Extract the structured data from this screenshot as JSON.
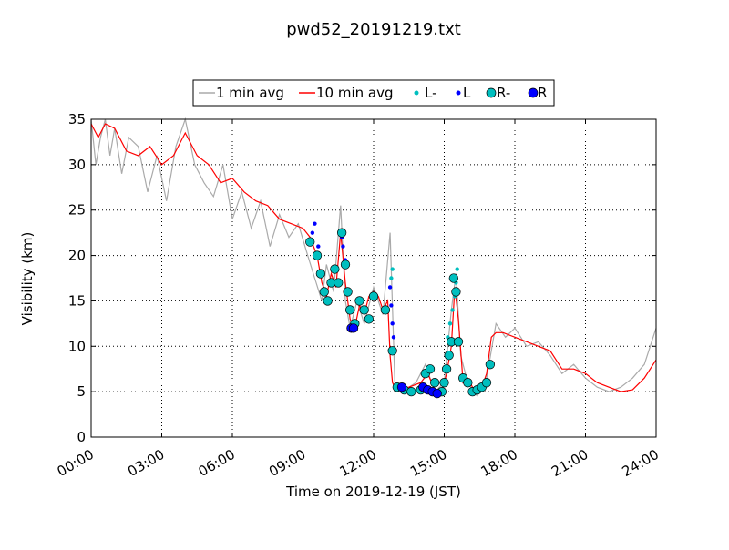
{
  "chart_data": {
    "type": "line",
    "title": "pwd52_20191219.txt",
    "xlabel": "Time on 2019-12-19 (JST)",
    "ylabel": "Visibility (km)",
    "xlim_hours": [
      0,
      24
    ],
    "ylim": [
      0,
      35
    ],
    "x_ticks": [
      "00:00",
      "03:00",
      "06:00",
      "09:00",
      "12:00",
      "15:00",
      "18:00",
      "21:00",
      "24:00"
    ],
    "y_ticks": [
      "0",
      "5",
      "10",
      "15",
      "20",
      "25",
      "30",
      "35"
    ],
    "grid": true,
    "legend_position": "top-center",
    "legend": [
      {
        "label": "1 min avg",
        "kind": "line",
        "color": "#aaaaaa"
      },
      {
        "label": "10 min avg",
        "kind": "line",
        "color": "#ff0000"
      },
      {
        "label": "L-",
        "kind": "small-dot",
        "color": "#00bfbf"
      },
      {
        "label": "L",
        "kind": "small-dot",
        "color": "#0000ff"
      },
      {
        "label": "R-",
        "kind": "big-dot",
        "color": "#00bfbf"
      },
      {
        "label": "R",
        "kind": "big-dot",
        "color": "#0000ff"
      }
    ],
    "series": [
      {
        "name": "10 min avg",
        "color": "#ff0000",
        "x": [
          0,
          0.3,
          0.6,
          1.0,
          1.5,
          2.0,
          2.5,
          3.0,
          3.5,
          4.0,
          4.5,
          5.0,
          5.5,
          6.0,
          6.5,
          7.0,
          7.5,
          8.0,
          8.5,
          9.0,
          9.3,
          9.6,
          9.8,
          10.0,
          10.2,
          10.4,
          10.6,
          10.8,
          11.0,
          11.2,
          11.4,
          11.6,
          11.8,
          12.0,
          12.2,
          12.4,
          12.6,
          12.7,
          12.8,
          12.9,
          13.0,
          13.5,
          14.0,
          14.3,
          14.6,
          14.9,
          15.1,
          15.3,
          15.45,
          15.6,
          15.8,
          16.0,
          16.3,
          16.6,
          16.8,
          17.0,
          17.2,
          17.5,
          18.0,
          18.5,
          19.0,
          19.5,
          20.0,
          20.5,
          21.0,
          21.5,
          22.0,
          22.5,
          23.0,
          23.5,
          24.0
        ],
        "values": [
          34.5,
          33.0,
          34.5,
          34.0,
          31.5,
          31.0,
          32.0,
          30.0,
          31.0,
          33.5,
          31.0,
          30.0,
          28.0,
          28.5,
          27.0,
          26.0,
          25.5,
          24.0,
          23.5,
          23.0,
          22.0,
          20.0,
          17.0,
          15.5,
          18.0,
          16.5,
          22.5,
          17.0,
          13.0,
          12.0,
          14.5,
          13.5,
          15.5,
          16.0,
          15.5,
          14.0,
          15.0,
          9.0,
          6.0,
          5.5,
          5.2,
          5.5,
          6.0,
          7.0,
          5.2,
          5.0,
          7.0,
          10.0,
          16.5,
          13.0,
          6.0,
          6.5,
          5.0,
          5.5,
          7.0,
          11.0,
          11.5,
          11.5,
          11.0,
          10.5,
          10.0,
          9.5,
          7.5,
          7.5,
          7.0,
          6.0,
          5.5,
          5.0,
          5.2,
          6.5,
          8.5
        ]
      },
      {
        "name": "1 min avg",
        "color": "#aaaaaa",
        "x": [
          0,
          0.2,
          0.4,
          0.6,
          0.8,
          1.0,
          1.3,
          1.6,
          2.0,
          2.4,
          2.8,
          3.2,
          3.6,
          4.0,
          4.4,
          4.8,
          5.2,
          5.6,
          6.0,
          6.4,
          6.8,
          7.2,
          7.6,
          8.0,
          8.4,
          8.8,
          9.2,
          9.5,
          9.8,
          10.0,
          10.3,
          10.6,
          10.8,
          11.0,
          11.3,
          11.6,
          12.0,
          12.4,
          12.7,
          12.9,
          13.2,
          13.8,
          14.2,
          14.6,
          15.0,
          15.3,
          15.5,
          15.7,
          16.0,
          16.4,
          16.8,
          17.2,
          17.6,
          18.0,
          18.5,
          19.0,
          19.5,
          20.0,
          20.5,
          21.0,
          21.5,
          22.0,
          22.5,
          23.0,
          23.5,
          24.0
        ],
        "values": [
          35.0,
          30.0,
          33.0,
          35.0,
          31.0,
          34.0,
          29.0,
          33.0,
          32.0,
          27.0,
          31.0,
          26.0,
          32.0,
          35.0,
          30.0,
          28.0,
          26.5,
          30.0,
          24.0,
          27.0,
          23.0,
          26.0,
          21.0,
          24.5,
          22.0,
          23.5,
          20.0,
          17.5,
          15.0,
          19.0,
          16.0,
          25.5,
          15.0,
          12.0,
          15.0,
          12.5,
          16.5,
          13.5,
          22.5,
          6.0,
          5.0,
          6.0,
          8.0,
          5.0,
          6.0,
          14.0,
          18.0,
          9.0,
          6.0,
          4.5,
          6.5,
          12.5,
          11.0,
          12.0,
          10.0,
          10.5,
          9.0,
          7.0,
          8.0,
          6.5,
          5.5,
          5.0,
          5.5,
          6.5,
          8.0,
          12.0
        ]
      },
      {
        "name": "L-",
        "color": "#00bfbf",
        "x": [
          12.75,
          12.8,
          15.15,
          15.25,
          15.35,
          15.45,
          15.5,
          15.55
        ],
        "values": [
          17.5,
          18.5,
          11.0,
          12.5,
          14.0,
          15.5,
          17.0,
          18.5
        ]
      },
      {
        "name": "L",
        "color": "#0000ff",
        "x": [
          9.4,
          9.5,
          9.65,
          10.65,
          10.7,
          10.8,
          12.7,
          12.75,
          12.8,
          12.85
        ],
        "values": [
          22.5,
          23.5,
          21.0,
          22.0,
          21.0,
          19.5,
          16.5,
          14.5,
          12.5,
          11.0
        ]
      },
      {
        "name": "R-",
        "color": "#00bfbf",
        "x": [
          9.3,
          9.6,
          9.75,
          9.9,
          10.05,
          10.2,
          10.35,
          10.5,
          10.65,
          10.8,
          10.9,
          11.0,
          11.2,
          11.4,
          11.6,
          11.8,
          12.0,
          12.5,
          12.8,
          13.0,
          13.3,
          13.6,
          14.0,
          14.2,
          14.4,
          14.6,
          14.9,
          15.0,
          15.1,
          15.2,
          15.3,
          15.4,
          15.5,
          15.6,
          15.8,
          16.0,
          16.2,
          16.4,
          16.6,
          16.8,
          16.95
        ],
        "values": [
          21.5,
          20.0,
          18.0,
          16.0,
          15.0,
          17.0,
          18.5,
          17.0,
          22.5,
          19.0,
          16.0,
          14.0,
          12.5,
          15.0,
          14.0,
          13.0,
          15.5,
          14.0,
          9.5,
          5.5,
          5.2,
          5.0,
          5.2,
          7.0,
          7.5,
          6.0,
          5.0,
          6.0,
          7.5,
          9.0,
          10.5,
          17.5,
          16.0,
          10.5,
          6.5,
          6.0,
          5.0,
          5.2,
          5.5,
          6.0,
          8.0
        ]
      },
      {
        "name": "R",
        "color": "#0000ff",
        "x": [
          11.05,
          11.15,
          13.2,
          14.1,
          14.3,
          14.5,
          14.7
        ],
        "values": [
          12.0,
          12.0,
          5.5,
          5.5,
          5.2,
          5.0,
          4.8
        ]
      }
    ]
  }
}
